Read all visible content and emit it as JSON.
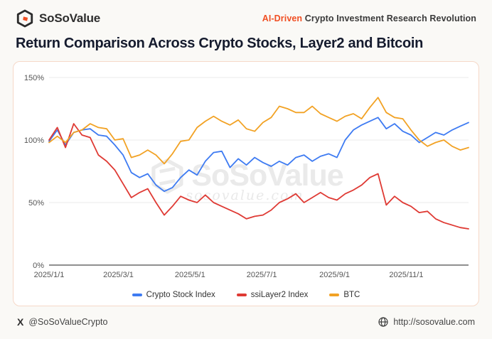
{
  "header": {
    "brand": "SoSoValue",
    "tagline_highlight": "AI-Driven",
    "tagline_rest": " Crypto Investment Research Revolution"
  },
  "title": "Return Comparison Across Crypto Stocks, Layer2 and Bitcoin",
  "watermark": {
    "name": "SoSoValue",
    "url": "sosovalue.com"
  },
  "footer": {
    "handle": "@SoSoValueCrypto",
    "url": "http://sosovalue.com"
  },
  "colors": {
    "accent": "#F04F23",
    "card_border": "#F6D8C8",
    "grid_line": "#EBEBEB",
    "axis_line": "#8F8F8F",
    "tick_text": "#555555"
  },
  "chart_data": {
    "type": "line",
    "title": "Return Comparison Across Crypto Stocks, Layer2 and Bitcoin",
    "x_start_date": "2025/1/1",
    "x_interval_days": 7,
    "x_tick_labels": [
      "2025/1/1",
      "2025/3/1",
      "2025/5/1",
      "2025/7/1",
      "2025/9/1",
      "2025/11/1"
    ],
    "x_tick_days": [
      0,
      59,
      120,
      181,
      243,
      304
    ],
    "y_ticks": [
      0,
      50,
      100,
      150
    ],
    "y_tick_labels": [
      "0%",
      "50%",
      "100%",
      "150%"
    ],
    "ylim": [
      0,
      150
    ],
    "grid": "horizontal",
    "legend_position": "bottom",
    "series": [
      {
        "name": "Crypto Stock Index",
        "color": "#3E7BF2",
        "values": [
          99,
          108,
          96,
          106,
          108,
          109,
          104,
          103,
          96,
          88,
          74,
          70,
          73,
          64,
          59,
          62,
          70,
          76,
          72,
          83,
          90,
          91,
          78,
          85,
          80,
          86,
          82,
          79,
          83,
          80,
          86,
          88,
          83,
          87,
          89,
          86,
          100,
          108,
          112,
          115,
          118,
          109,
          113,
          107,
          104,
          98,
          102,
          106,
          104,
          108,
          111,
          114
        ]
      },
      {
        "name": "ssiLayer2 Index",
        "color": "#DF3A34",
        "values": [
          100,
          110,
          94,
          113,
          104,
          102,
          88,
          83,
          76,
          65,
          54,
          58,
          61,
          50,
          40,
          47,
          55,
          52,
          50,
          56,
          50,
          47,
          44,
          41,
          37,
          39,
          40,
          44,
          50,
          53,
          57,
          50,
          54,
          58,
          54,
          52,
          57,
          60,
          64,
          70,
          73,
          48,
          55,
          50,
          47,
          42,
          43,
          37,
          34,
          32,
          30,
          29
        ]
      },
      {
        "name": "BTC",
        "color": "#F2A224",
        "values": [
          98,
          103,
          98,
          106,
          108,
          113,
          110,
          109,
          100,
          101,
          86,
          88,
          92,
          88,
          81,
          89,
          99,
          100,
          110,
          115,
          119,
          115,
          112,
          116,
          109,
          107,
          114,
          118,
          127,
          125,
          122,
          122,
          127,
          121,
          118,
          115,
          119,
          121,
          117,
          126,
          134,
          122,
          118,
          117,
          108,
          100,
          95,
          98,
          100,
          95,
          92,
          94
        ]
      }
    ]
  }
}
